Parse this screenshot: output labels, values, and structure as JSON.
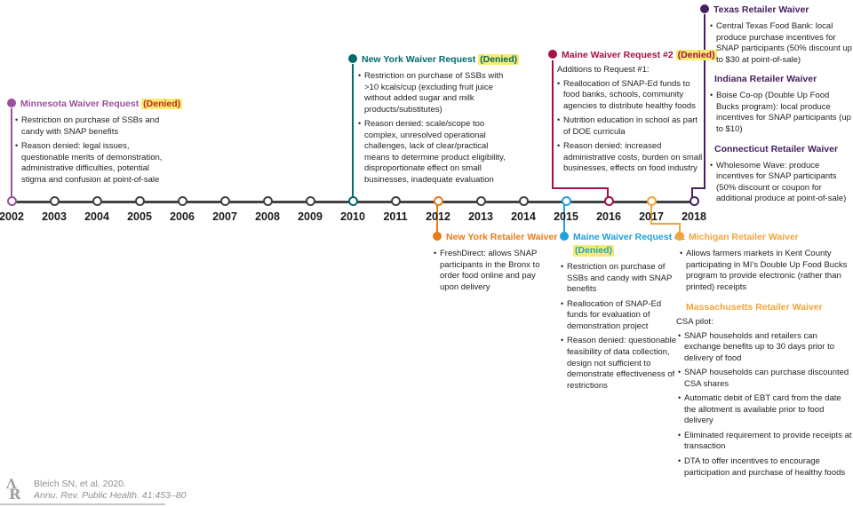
{
  "colors": {
    "minnesota": "#9B519E",
    "denied-red": "#C0272D",
    "ny-waiver": "#006A6E",
    "maine2": "#A31240",
    "retailer-purple": "#47215F",
    "ny-retailer": "#E87B17",
    "maine1": "#1FA0DB",
    "michigan": "#F2A43B",
    "axis": "#414042",
    "highlight": "#F7EC6D",
    "body-text": "#231F20",
    "citation": "#8D9093"
  },
  "timeline": {
    "years": [
      "2002",
      "2003",
      "2004",
      "2005",
      "2006",
      "2007",
      "2008",
      "2009",
      "2010",
      "2011",
      "2012",
      "2013",
      "2014",
      "2015",
      "2016",
      "2017",
      "2018"
    ]
  },
  "events": {
    "minnesota": {
      "title": "Minnesota Waiver Request",
      "denied": "(Denied)",
      "bullets": [
        "Restriction on purchase of SSBs and candy with SNAP benefits",
        "Reason denied: legal issues, questionable merits of demonstration, administrative difficulties, potential stigma and confusion at point-of-sale"
      ]
    },
    "ny_waiver": {
      "title": "New York Waiver Request",
      "denied": "(Denied)",
      "bullets": [
        "Restriction on purchase of SSBs with >10 kcals/cup (excluding fruit juice without added sugar and milk products/substitutes)",
        "Reason denied: scale/scope too complex, unresolved operational challenges, lack of clear/practical means to determine product eligibility, disproportionate effect on small businesses, inadequate evaluation"
      ]
    },
    "maine2": {
      "title": "Maine Waiver Request #2",
      "denied": "(Denied)",
      "intro": "Additions to Request #1:",
      "bullets": [
        "Reallocation of SNAP-Ed funds to food banks, schools, community agencies to distribute healthy foods",
        "Nutrition education in school as part of DOE curricula",
        "Reason denied: increased administrative costs, burden on small businesses, effects on food industry"
      ]
    },
    "texas": {
      "title": "Texas Retailer Waiver",
      "bullets": [
        "Central Texas Food Bank: local produce purchase incentives for SNAP participants (50% discount up to $30 at point-of-sale)"
      ]
    },
    "indiana": {
      "title": "Indiana Retailer Waiver",
      "bullets": [
        "Boise Co-op (Double Up Food Bucks program): local produce incentives for SNAP participants (up to $10)"
      ]
    },
    "connecticut": {
      "title": "Connecticut Retailer Waiver",
      "bullets": [
        "Wholesome Wave: produce incentives for SNAP participants (50% discount or coupon for additional produce at point-of-sale)"
      ]
    },
    "ny_retailer": {
      "title": "New York Retailer Waiver",
      "bullets": [
        "FreshDirect: allows SNAP participants in the Bronx to order food online and pay upon delivery"
      ]
    },
    "maine1": {
      "title": "Maine Waiver Request #1",
      "denied": "(Denied)",
      "bullets": [
        "Restriction on purchase of SSBs and candy with SNAP benefits",
        "Reallocation of SNAP-Ed funds for evaluation of demonstration project",
        "Reason denied: questionable feasibility of data collection, design not sufficient to demonstrate effectiveness of restrictions"
      ]
    },
    "michigan": {
      "title": "Michigan Retailer Waiver",
      "bullets": [
        "Allows farmers markets in Kent County participating in MI's Double Up Food Bucks program to provide electronic (rather than printed) receipts"
      ]
    },
    "massachusetts": {
      "title": "Massachusetts Retailer Waiver",
      "intro": "CSA pilot:",
      "bullets": [
        "SNAP households and retailers can exchange benefits up to 30 days prior to delivery of food",
        "SNAP households can purchase discounted CSA shares",
        "Automatic debit of EBT card from the date the allotment is available prior to food delivery",
        "Eliminated requirement to provide receipts at transaction",
        "DTA to offer incentives to encourage participation and purchase of healthy foods"
      ]
    }
  },
  "citation": {
    "line1": "Bleich SN, et al. 2020.",
    "line2": "Annu. Rev. Public Health. 41:453–80"
  }
}
